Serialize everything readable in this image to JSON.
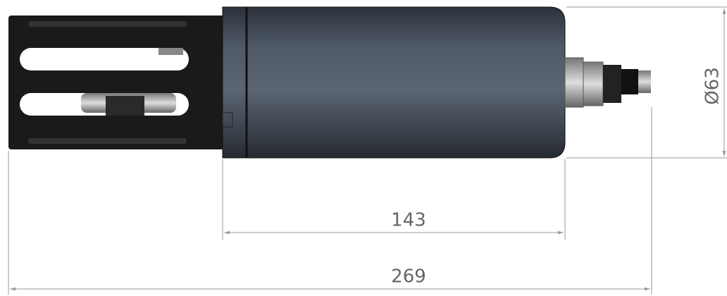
{
  "dimensions": {
    "body_length": "143",
    "total_length": "269",
    "diameter": "Ø63"
  }
}
